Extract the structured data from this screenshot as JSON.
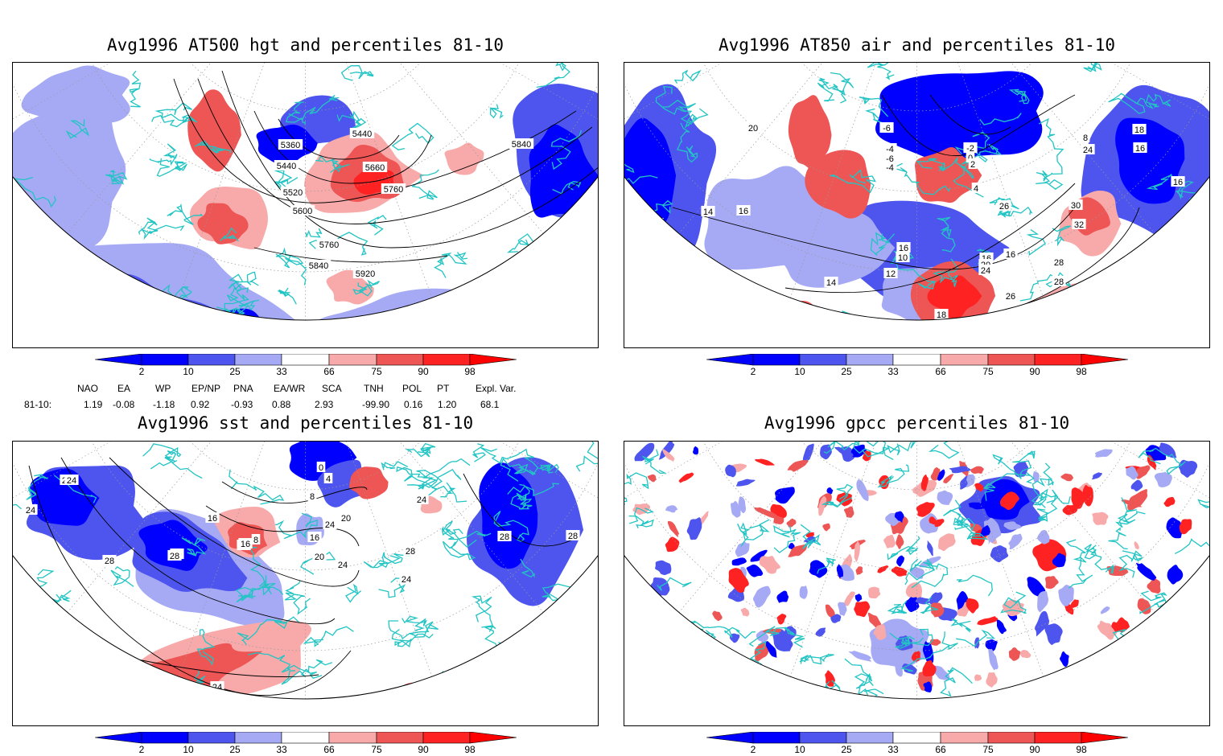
{
  "colors": {
    "blue_dark": "#0000ff",
    "blue_mid": "#4d55ee",
    "blue_light": "#a6aaf5",
    "red_light": "#f8aaaa",
    "red_mid": "#ee5555",
    "red_dark": "#ff2222",
    "coast": "#22c4c4",
    "contour": "#000000"
  },
  "legend": {
    "levels": [
      "2",
      "10",
      "25",
      "33",
      "66",
      "75",
      "90",
      "98"
    ]
  },
  "panels": [
    {
      "id": "hgt",
      "title": "Avg1996 AT500 hgt and percentiles 81-10",
      "contour_labels": [
        "5440",
        "5360",
        "5440",
        "5520",
        "5600",
        "5660",
        "5760",
        "5760",
        "5840",
        "5840",
        "5920"
      ]
    },
    {
      "id": "air",
      "title": "Avg1996 AT850 air and percentiles 81-10",
      "contour_labels": [
        "20",
        "-6",
        "-4",
        "-6",
        "-4",
        "-2",
        "0",
        "2",
        "4",
        "8",
        "24",
        "26",
        "18",
        "16",
        "14",
        "18",
        "16",
        "16",
        "10",
        "12",
        "14",
        "16",
        "20",
        "22",
        "24",
        "16",
        "26",
        "30",
        "32",
        "28",
        "28",
        "18",
        "28",
        "26",
        "24",
        "22",
        "20",
        "16",
        "18",
        "16",
        "18",
        "16"
      ]
    },
    {
      "id": "sst",
      "title": "Avg1996 sst and percentiles 81-10",
      "contour_labels": [
        "28",
        "24",
        "28",
        "20",
        "16",
        "28",
        "8",
        "12",
        "16",
        "20",
        "24",
        "0",
        "4",
        "8",
        "20",
        "24",
        "16",
        "24",
        "28",
        "24",
        "28",
        "28",
        "24",
        "28",
        "24"
      ]
    },
    {
      "id": "gpcc",
      "title": "Avg1996 gpcc percentiles 81-10",
      "contour_labels": []
    }
  ],
  "indices": {
    "names": [
      "NAO",
      "EA",
      "WP",
      "EP/NP",
      "PNA",
      "EA/WR",
      "SCA",
      "TNH",
      "POL",
      "PT",
      "Expl. Var."
    ],
    "row_label": "81-10:",
    "values": [
      "1.19",
      "-0.08",
      "-1.18",
      "0.92",
      "-0.93",
      "0.88",
      "2.93",
      "-99.90",
      "0.16",
      "1.20",
      "68.1"
    ]
  }
}
